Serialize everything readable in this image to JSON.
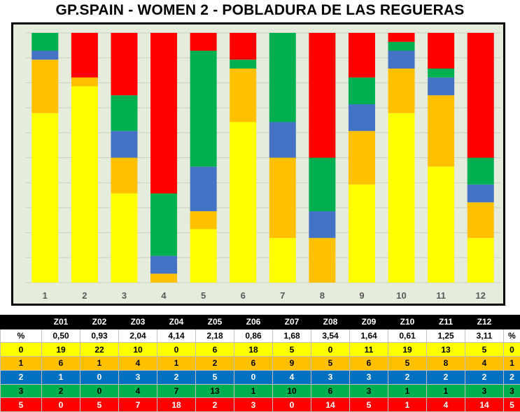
{
  "page": {
    "title": "GP.SPAIN - WOMEN 2  - POBLADURA DE LAS REGUERAS"
  },
  "chart_data": {
    "type": "bar",
    "stacked": true,
    "normalized": "percent",
    "categories": [
      "1",
      "2",
      "3",
      "4",
      "5",
      "6",
      "7",
      "8",
      "9",
      "10",
      "11",
      "12"
    ],
    "series": [
      {
        "name": "0",
        "color": "#ffff00",
        "values": [
          19,
          22,
          10,
          0,
          6,
          18,
          5,
          0,
          11,
          19,
          13,
          5
        ]
      },
      {
        "name": "1",
        "color": "#ffc000",
        "values": [
          6,
          1,
          4,
          1,
          2,
          6,
          9,
          5,
          6,
          5,
          8,
          4
        ]
      },
      {
        "name": "2",
        "color": "#4472c4",
        "values": [
          1,
          0,
          3,
          2,
          5,
          0,
          4,
          3,
          3,
          2,
          2,
          2
        ]
      },
      {
        "name": "3",
        "color": "#00b050",
        "values": [
          2,
          0,
          4,
          7,
          13,
          1,
          10,
          6,
          3,
          1,
          1,
          3
        ]
      },
      {
        "name": "5",
        "color": "#ff0000",
        "values": [
          0,
          5,
          7,
          18,
          2,
          3,
          0,
          14,
          5,
          1,
          4,
          14
        ]
      }
    ],
    "ylim": [
      0,
      100
    ],
    "grid": true,
    "legend": "none"
  },
  "table": {
    "headers": [
      "",
      "Z01",
      "Z02",
      "Z03",
      "Z04",
      "Z05",
      "Z06",
      "Z07",
      "Z08",
      "Z09",
      "Z10",
      "Z11",
      "Z12",
      ""
    ],
    "rows": [
      {
        "cls": "r-pct",
        "cells": [
          "%",
          "0,50",
          "0,93",
          "2,04",
          "4,14",
          "2,18",
          "0,86",
          "1,68",
          "3,54",
          "1,64",
          "0,61",
          "1,25",
          "3,11",
          "%"
        ]
      },
      {
        "cls": "r0",
        "cells": [
          "0",
          "19",
          "22",
          "10",
          "0",
          "6",
          "18",
          "5",
          "0",
          "11",
          "19",
          "13",
          "5",
          "0"
        ]
      },
      {
        "cls": "r1",
        "cells": [
          "1",
          "6",
          "1",
          "4",
          "1",
          "2",
          "6",
          "9",
          "5",
          "6",
          "5",
          "8",
          "4",
          "1"
        ]
      },
      {
        "cls": "r2",
        "cells": [
          "2",
          "1",
          "0",
          "3",
          "2",
          "5",
          "0",
          "4",
          "3",
          "3",
          "2",
          "2",
          "2",
          "2"
        ]
      },
      {
        "cls": "r3",
        "cells": [
          "3",
          "2",
          "0",
          "4",
          "7",
          "13",
          "1",
          "10",
          "6",
          "3",
          "1",
          "1",
          "3",
          "3"
        ]
      },
      {
        "cls": "r5",
        "cells": [
          "5",
          "0",
          "5",
          "7",
          "18",
          "2",
          "3",
          "0",
          "14",
          "5",
          "1",
          "4",
          "14",
          "5"
        ]
      }
    ]
  }
}
